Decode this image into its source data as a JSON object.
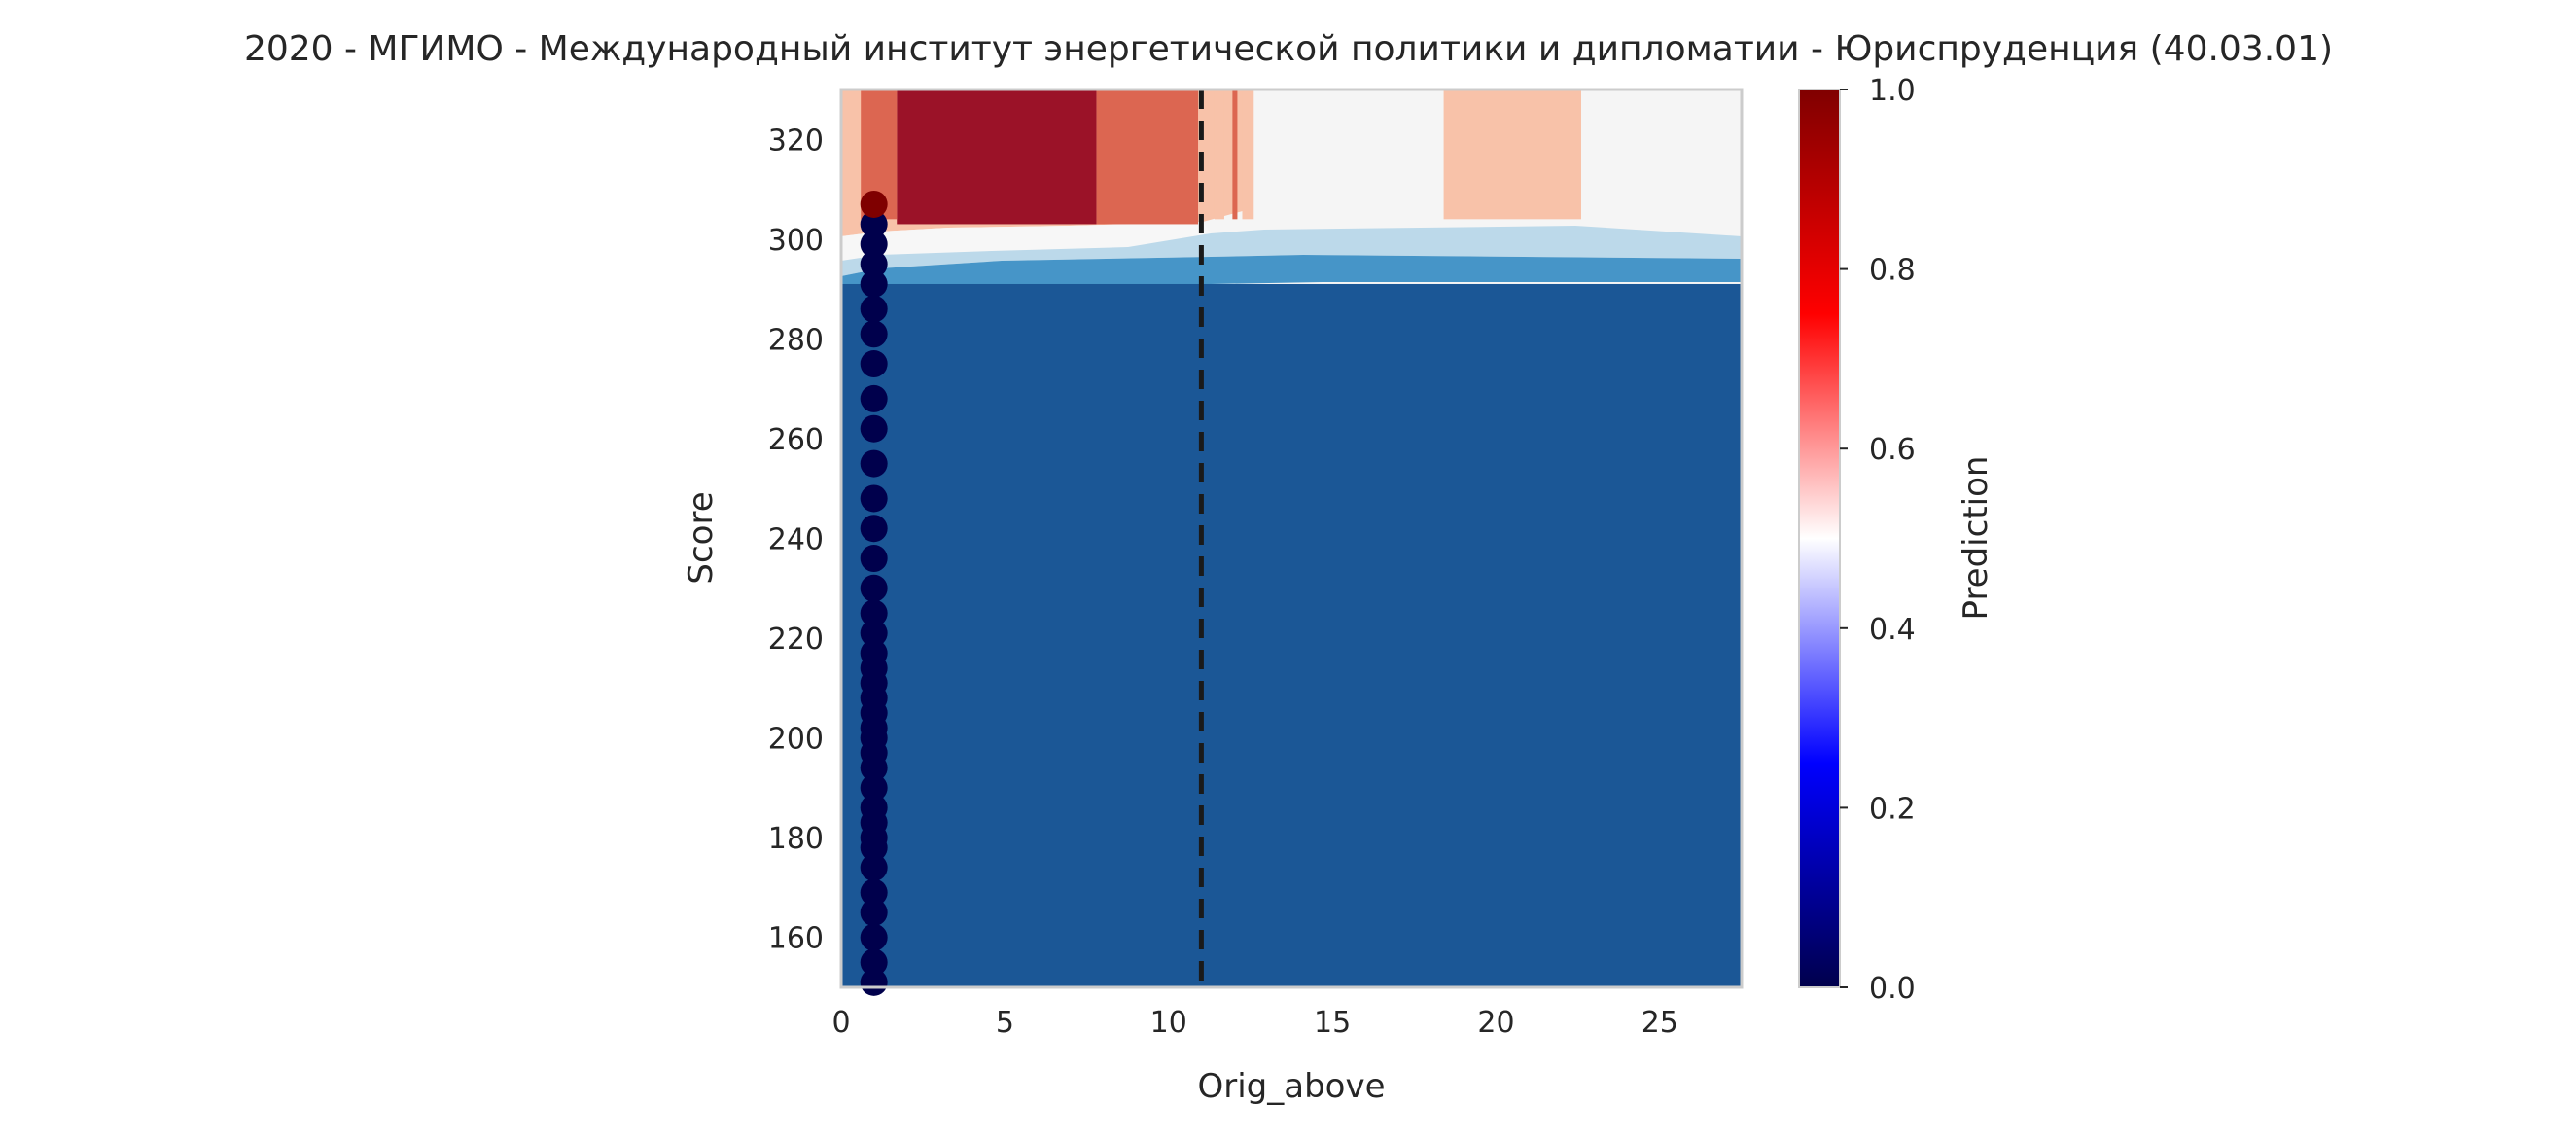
{
  "chart_data": {
    "type": "heatmap",
    "title": "2020 - МГИМО - Международный институт энергетической политики и дипломатии - Юриспруденция (40.03.01)",
    "xlabel": "Orig_above",
    "ylabel": "Score",
    "xlim": [
      0,
      27.5
    ],
    "ylim": [
      150,
      330
    ],
    "x_ticks": [
      0,
      5,
      10,
      15,
      20,
      25
    ],
    "y_ticks": [
      160,
      180,
      200,
      220,
      240,
      260,
      280,
      300,
      320
    ],
    "grid": false,
    "colorbar": {
      "label": "Prediction",
      "colormap": "seismic",
      "range": [
        0,
        1
      ],
      "ticks": [
        0.0,
        0.2,
        0.4,
        0.6,
        0.8,
        1.0
      ],
      "tick_labels": [
        "0.0",
        "0.2",
        "0.4",
        "0.6",
        "0.8",
        "1.0"
      ]
    },
    "vertical_line": {
      "x": 11,
      "style": "dashed",
      "color": "#1a1a1a"
    },
    "contour_regions": [
      {
        "prediction": 0.95,
        "color": "#9b1228",
        "x": [
          1.7,
          7.8
        ],
        "y": [
          303,
          330
        ]
      },
      {
        "prediction": 0.8,
        "color": "#dc6651",
        "x": [
          0.6,
          1.7
        ],
        "y": [
          304,
          330
        ]
      },
      {
        "prediction": 0.8,
        "color": "#dc6651",
        "x": [
          7.8,
          10.9
        ],
        "y": [
          303,
          330
        ]
      },
      {
        "prediction": 0.65,
        "color": "#f8c2a9",
        "x": [
          18.4,
          22.6
        ],
        "y": [
          304,
          330
        ]
      },
      {
        "prediction": 0.15,
        "color": "#1b5796",
        "x": [
          0,
          27.5
        ],
        "y": [
          150,
          291
        ]
      }
    ],
    "series": [
      {
        "type": "scatter",
        "x": [
          1,
          1,
          1,
          1,
          1,
          1,
          1,
          1,
          1,
          1,
          1,
          1,
          1,
          1,
          1,
          1,
          1,
          1,
          1,
          1,
          1,
          1,
          1,
          1,
          1,
          1,
          1,
          1,
          1,
          1,
          1,
          1,
          1,
          1,
          1,
          1,
          1
        ],
        "y": [
          151,
          155,
          160,
          165,
          169,
          174,
          178,
          180,
          183,
          186,
          190,
          194,
          197,
          200,
          202,
          205,
          208,
          211,
          214,
          217,
          221,
          225,
          230,
          236,
          242,
          248,
          255,
          262,
          268,
          275,
          281,
          286,
          291,
          295,
          299,
          303,
          307
        ],
        "predictions": [
          0,
          0,
          0,
          0,
          0,
          0,
          0,
          0,
          0,
          0,
          0,
          0,
          0,
          0,
          0,
          0,
          0,
          0,
          0,
          0,
          0,
          0,
          0,
          0,
          0,
          0,
          0,
          0,
          0,
          0,
          0,
          0,
          0,
          0,
          0,
          0,
          1
        ]
      }
    ]
  }
}
